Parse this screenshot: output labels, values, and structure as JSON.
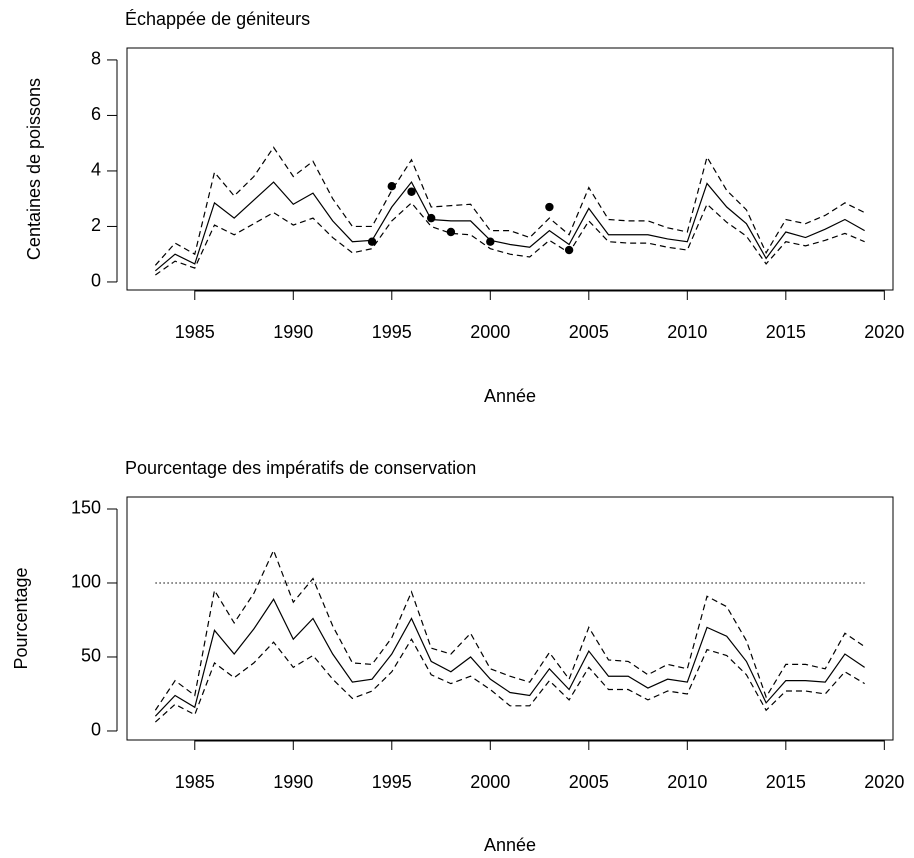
{
  "chart_data": [
    {
      "type": "line",
      "title": "Échappée de géniteurs",
      "xlabel": "Année",
      "ylabel": "Centaines de poissons",
      "x": [
        1983,
        1984,
        1985,
        1986,
        1987,
        1988,
        1989,
        1990,
        1991,
        1992,
        1993,
        1994,
        1995,
        1996,
        1997,
        1998,
        1999,
        2000,
        2001,
        2002,
        2003,
        2004,
        2005,
        2006,
        2007,
        2008,
        2009,
        2010,
        2011,
        2012,
        2013,
        2014,
        2015,
        2016,
        2017,
        2018,
        2019
      ],
      "series": [
        {
          "color": "#000000",
          "dashed": false,
          "values": [
            0.4,
            1.0,
            0.65,
            2.85,
            2.3,
            2.95,
            3.6,
            2.8,
            3.2,
            2.2,
            1.45,
            1.5,
            2.7,
            3.6,
            2.25,
            2.2,
            2.2,
            1.5,
            1.35,
            1.25,
            1.85,
            1.35,
            2.65,
            1.7,
            1.7,
            1.7,
            1.55,
            1.45,
            3.55,
            2.7,
            2.1,
            0.85,
            1.8,
            1.6,
            1.9,
            2.25,
            1.85
          ]
        },
        {
          "color": "#000000",
          "dashed": true,
          "values": [
            0.6,
            1.4,
            1.0,
            3.95,
            3.1,
            3.8,
            4.85,
            3.8,
            4.35,
            3.0,
            2.0,
            2.0,
            3.3,
            4.4,
            2.7,
            2.75,
            2.8,
            1.85,
            1.85,
            1.6,
            2.3,
            1.7,
            3.4,
            2.25,
            2.2,
            2.2,
            1.95,
            1.8,
            4.5,
            3.3,
            2.6,
            1.05,
            2.25,
            2.1,
            2.4,
            2.85,
            2.5
          ]
        },
        {
          "color": "#000000",
          "dashed": true,
          "values": [
            0.25,
            0.75,
            0.5,
            2.05,
            1.7,
            2.1,
            2.5,
            2.05,
            2.3,
            1.6,
            1.05,
            1.2,
            2.2,
            2.85,
            2.0,
            1.75,
            1.7,
            1.2,
            1.0,
            0.9,
            1.5,
            1.05,
            2.2,
            1.45,
            1.4,
            1.4,
            1.25,
            1.15,
            2.8,
            2.15,
            1.65,
            0.65,
            1.45,
            1.3,
            1.5,
            1.75,
            1.45
          ]
        },
        {
          "type": "scatter",
          "color": "#000000",
          "x": [
            1994,
            1995,
            1996,
            1997,
            1998,
            2000,
            2003,
            2004
          ],
          "values": [
            1.45,
            3.45,
            3.25,
            2.3,
            1.8,
            1.45,
            2.7,
            1.15
          ]
        }
      ],
      "xlim": [
        1981.56,
        2020.44
      ],
      "xticks": [
        1985,
        1990,
        1995,
        2000,
        2005,
        2010,
        2015,
        2020
      ],
      "ylim": [
        -0.29,
        8.43
      ],
      "yticks": [
        0,
        2,
        4,
        6,
        8
      ]
    },
    {
      "type": "line",
      "title": "Pourcentage des impératifs de conservation",
      "xlabel": "Année",
      "ylabel": "Pourcentage",
      "x": [
        1983,
        1984,
        1985,
        1986,
        1987,
        1988,
        1989,
        1990,
        1991,
        1992,
        1993,
        1994,
        1995,
        1996,
        1997,
        1998,
        1999,
        2000,
        2001,
        2002,
        2003,
        2004,
        2005,
        2006,
        2007,
        2008,
        2009,
        2010,
        2011,
        2012,
        2013,
        2014,
        2015,
        2016,
        2017,
        2018,
        2019
      ],
      "series": [
        {
          "color": "#000000",
          "dashed": false,
          "values": [
            10,
            24,
            16,
            68,
            52,
            69,
            89,
            62,
            76,
            52,
            33,
            35,
            52,
            76,
            47,
            40,
            50,
            35,
            26,
            24,
            42,
            28,
            54,
            37,
            37,
            29,
            35,
            33,
            70,
            64,
            47,
            19,
            34,
            34,
            33,
            52,
            43
          ]
        },
        {
          "color": "#000000",
          "dashed": true,
          "values": [
            14,
            34,
            24,
            95,
            73,
            93,
            122,
            87,
            103,
            71,
            46,
            45,
            63,
            94,
            56,
            52,
            66,
            42,
            37,
            33,
            53,
            35,
            70,
            48,
            47,
            38,
            45,
            42,
            91,
            84,
            61,
            23,
            45,
            45,
            42,
            66,
            57
          ]
        },
        {
          "color": "#000000",
          "dashed": true,
          "values": [
            6,
            18,
            11,
            46,
            36,
            46,
            60,
            43,
            51,
            35,
            22,
            27,
            40,
            62,
            38,
            32,
            37,
            28,
            17,
            17,
            34,
            21,
            43,
            28,
            28,
            21,
            27,
            25,
            55,
            51,
            38,
            14,
            27,
            27,
            25,
            40,
            32
          ]
        }
      ],
      "reference_line": 100,
      "xlim": [
        1981.56,
        2020.44
      ],
      "xticks": [
        1985,
        1990,
        1995,
        2000,
        2005,
        2010,
        2015,
        2020
      ],
      "ylim": [
        -6.1,
        158.1
      ],
      "yticks": [
        0,
        50,
        100,
        150
      ]
    }
  ]
}
